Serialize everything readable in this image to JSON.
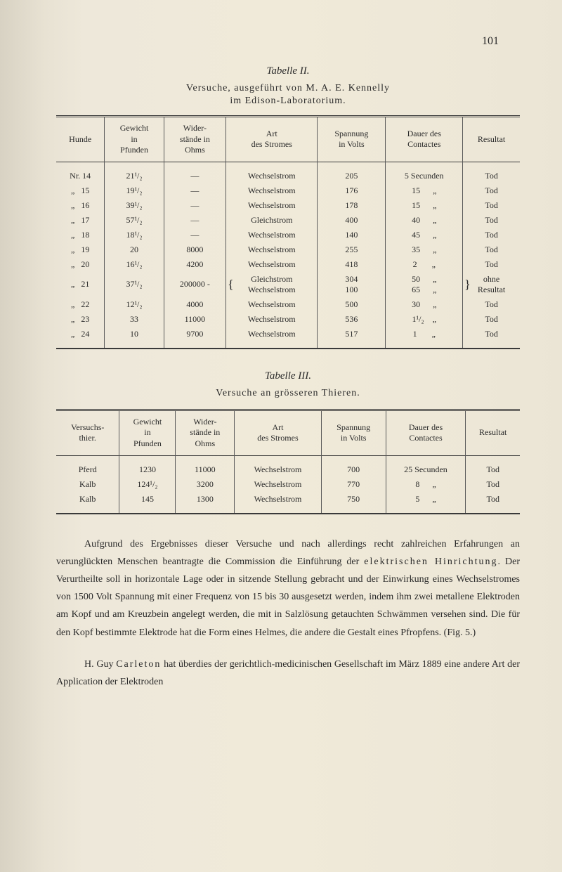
{
  "page_number": "101",
  "table2": {
    "title": "Tabelle II.",
    "subtitle_line1": "Versuche, ausgeführt von M. A. E. Kennelly",
    "subtitle_line2": "im Edison-Laboratorium.",
    "headers": {
      "col1": "Hunde",
      "col2_line1": "Gewicht",
      "col2_line2": "in",
      "col2_line3": "Pfunden",
      "col3_line1": "Wider-",
      "col3_line2": "stände in",
      "col3_line3": "Ohms",
      "col4_line1": "Art",
      "col4_line2": "des Stromes",
      "col5_line1": "Spannung",
      "col5_line2": "in Volts",
      "col6_line1": "Dauer des",
      "col6_line2": "Contactes",
      "col7": "Resultat"
    },
    "rows": [
      {
        "nr": "Nr. 14",
        "gewicht": "21¹/₂",
        "wider": "—",
        "art": "Wechselstrom",
        "spannung": "205",
        "dauer": "5 Secunden",
        "resultat": "Tod"
      },
      {
        "nr": "„   15",
        "gewicht": "19¹/₂",
        "wider": "—",
        "art": "Wechselstrom",
        "spannung": "176",
        "dauer": "15      „",
        "resultat": "Tod"
      },
      {
        "nr": "„   16",
        "gewicht": "39¹/₂",
        "wider": "—",
        "art": "Wechselstrom",
        "spannung": "178",
        "dauer": "15      „",
        "resultat": "Tod"
      },
      {
        "nr": "„   17",
        "gewicht": "57¹/₂",
        "wider": "—",
        "art": "Gleichstrom",
        "spannung": "400",
        "dauer": "40      „",
        "resultat": "Tod"
      },
      {
        "nr": "„   18",
        "gewicht": "18¹/₂",
        "wider": "—",
        "art": "Wechselstrom",
        "spannung": "140",
        "dauer": "45      „",
        "resultat": "Tod"
      },
      {
        "nr": "„   19",
        "gewicht": "20",
        "wider": "8000",
        "art": "Wechselstrom",
        "spannung": "255",
        "dauer": "35      „",
        "resultat": "Tod"
      },
      {
        "nr": "„   20",
        "gewicht": "16¹/₂",
        "wider": "4200",
        "art": "Wechselstrom",
        "spannung": "418",
        "dauer": "2       „",
        "resultat": "Tod"
      },
      {
        "nr": "„   21",
        "gewicht": "37¹/₂",
        "wider": "200000 -",
        "art_line1": "Gleichstrom",
        "art_line2": "Wechselstrom",
        "spannung_line1": "304",
        "spannung_line2": "100",
        "dauer_line1": "50      „",
        "dauer_line2": "65      „",
        "resultat_line1": "ohne",
        "resultat_line2": "Resultat",
        "multiline": true
      },
      {
        "nr": "„   22",
        "gewicht": "12¹/₂",
        "wider": "4000",
        "art": "Wechselstrom",
        "spannung": "500",
        "dauer": "30      „",
        "resultat": "Tod"
      },
      {
        "nr": "„   23",
        "gewicht": "33",
        "wider": "11000",
        "art": "Wechselstrom",
        "spannung": "536",
        "dauer": "1¹/₂    „",
        "resultat": "Tod"
      },
      {
        "nr": "„   24",
        "gewicht": "10",
        "wider": "9700",
        "art": "Wechselstrom",
        "spannung": "517",
        "dauer": "1       „",
        "resultat": "Tod"
      }
    ]
  },
  "table3": {
    "title": "Tabelle III.",
    "subtitle": "Versuche an grösseren Thieren.",
    "headers": {
      "col1_line1": "Versuchs-",
      "col1_line2": "thier.",
      "col2_line1": "Gewicht",
      "col2_line2": "in",
      "col2_line3": "Pfunden",
      "col3_line1": "Wider-",
      "col3_line2": "stände in",
      "col3_line3": "Ohms",
      "col4_line1": "Art",
      "col4_line2": "des Stromes",
      "col5_line1": "Spannung",
      "col5_line2": "in Volts",
      "col6_line1": "Dauer des",
      "col6_line2": "Contactes",
      "col7": "Resultat"
    },
    "rows": [
      {
        "thier": "Pferd",
        "gewicht": "1230",
        "wider": "11000",
        "art": "Wechselstrom",
        "spannung": "700",
        "dauer": "25 Secunden",
        "resultat": "Tod"
      },
      {
        "thier": "Kalb",
        "gewicht": "124¹/₂",
        "wider": "3200",
        "art": "Wechselstrom",
        "spannung": "770",
        "dauer": "8      „",
        "resultat": "Tod"
      },
      {
        "thier": "Kalb",
        "gewicht": "145",
        "wider": "1300",
        "art": "Wechselstrom",
        "spannung": "750",
        "dauer": "5      „",
        "resultat": "Tod"
      }
    ]
  },
  "paragraph1": "Aufgrund des Ergebnisses dieser Versuche und nach allerdings recht zahlreichen Erfahrungen an verunglückten Menschen beantragte die Commission die Einführung der elektrischen Hinrichtung. Der Verurtheilte soll in horizontale Lage oder in sitzende Stellung gebracht und der Einwirkung eines Wechselstromes von 1500 Volt Spannung mit einer Frequenz von 15 bis 30 ausgesetzt werden, indem ihm zwei metallene Elektroden am Kopf und am Kreuzbein angelegt werden, die mit in Salzlösung getauchten Schwämmen versehen sind. Die für den Kopf bestimmte Elektrode hat die Form eines Helmes, die andere die Gestalt eines Pfropfens. (Fig. 5.)",
  "paragraph2": "H. Guy Carleton hat überdies der gerichtlich-medicinischen Gesellschaft im März 1889 eine andere Art der Application der Elektroden"
}
